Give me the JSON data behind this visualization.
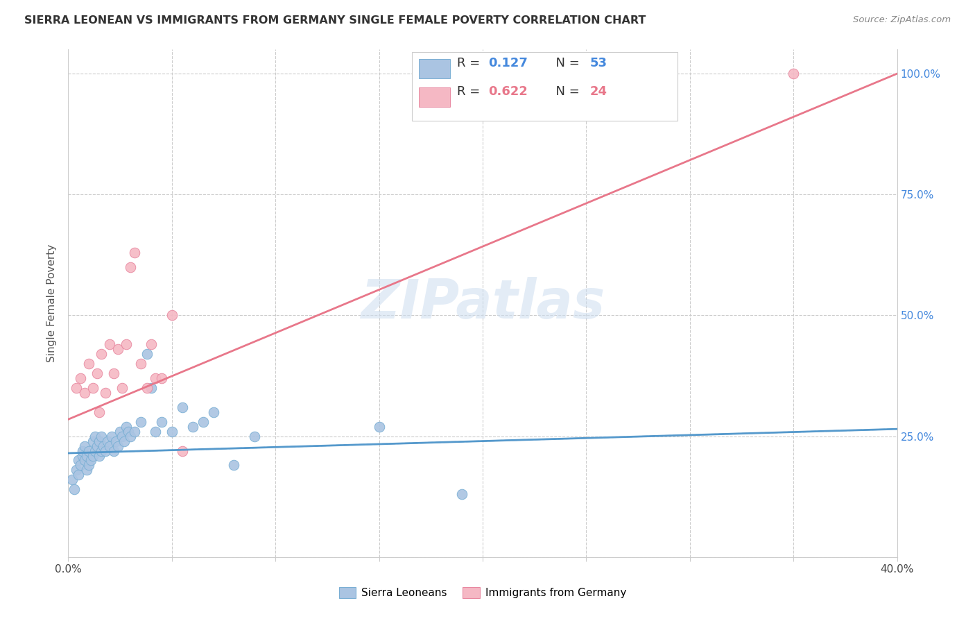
{
  "title": "SIERRA LEONEAN VS IMMIGRANTS FROM GERMANY SINGLE FEMALE POVERTY CORRELATION CHART",
  "source": "Source: ZipAtlas.com",
  "ylabel": "Single Female Poverty",
  "xlim": [
    0.0,
    0.4
  ],
  "ylim": [
    0.0,
    1.05
  ],
  "xtick_positions": [
    0.0,
    0.05,
    0.1,
    0.15,
    0.2,
    0.25,
    0.3,
    0.35,
    0.4
  ],
  "xticklabels": [
    "0.0%",
    "",
    "",
    "",
    "",
    "",
    "",
    "",
    "40.0%"
  ],
  "ytick_positions": [
    0.0,
    0.25,
    0.5,
    0.75,
    1.0
  ],
  "yticklabels": [
    "",
    "25.0%",
    "50.0%",
    "75.0%",
    "100.0%"
  ],
  "grid_color": "#cccccc",
  "background_color": "#ffffff",
  "sl_color": "#aac4e2",
  "sl_edge": "#7aafd4",
  "de_color": "#f5b8c4",
  "de_edge": "#e888a0",
  "sl_line_color": "#5599cc",
  "de_line_color": "#e8778a",
  "sl_R": "0.127",
  "sl_N": "53",
  "de_R": "0.622",
  "de_N": "24",
  "stat_color_R": "#333333",
  "stat_color_N_sl": "#4488dd",
  "stat_color_val_sl": "#4488dd",
  "stat_color_N_de": "#e8778a",
  "stat_color_val_de": "#e8778a",
  "watermark": "ZIPatlas",
  "watermark_color": "#ccddf0",
  "sl_x": [
    0.002,
    0.003,
    0.004,
    0.005,
    0.005,
    0.006,
    0.007,
    0.007,
    0.008,
    0.008,
    0.009,
    0.009,
    0.01,
    0.01,
    0.011,
    0.012,
    0.012,
    0.013,
    0.013,
    0.014,
    0.015,
    0.015,
    0.016,
    0.016,
    0.017,
    0.018,
    0.019,
    0.02,
    0.021,
    0.022,
    0.023,
    0.024,
    0.025,
    0.026,
    0.027,
    0.028,
    0.029,
    0.03,
    0.032,
    0.035,
    0.038,
    0.04,
    0.042,
    0.045,
    0.05,
    0.055,
    0.06,
    0.065,
    0.07,
    0.08,
    0.09,
    0.15,
    0.19
  ],
  "sl_y": [
    0.16,
    0.14,
    0.18,
    0.2,
    0.17,
    0.19,
    0.21,
    0.22,
    0.2,
    0.23,
    0.18,
    0.21,
    0.19,
    0.22,
    0.2,
    0.21,
    0.24,
    0.22,
    0.25,
    0.23,
    0.21,
    0.24,
    0.22,
    0.25,
    0.23,
    0.22,
    0.24,
    0.23,
    0.25,
    0.22,
    0.24,
    0.23,
    0.26,
    0.25,
    0.24,
    0.27,
    0.26,
    0.25,
    0.26,
    0.28,
    0.42,
    0.35,
    0.26,
    0.28,
    0.26,
    0.31,
    0.27,
    0.28,
    0.3,
    0.19,
    0.25,
    0.27,
    0.13
  ],
  "de_x": [
    0.004,
    0.006,
    0.008,
    0.01,
    0.012,
    0.014,
    0.015,
    0.016,
    0.018,
    0.02,
    0.022,
    0.024,
    0.026,
    0.028,
    0.03,
    0.032,
    0.035,
    0.038,
    0.04,
    0.042,
    0.045,
    0.05,
    0.055,
    0.35
  ],
  "de_y": [
    0.35,
    0.37,
    0.34,
    0.4,
    0.35,
    0.38,
    0.3,
    0.42,
    0.34,
    0.44,
    0.38,
    0.43,
    0.35,
    0.44,
    0.6,
    0.63,
    0.4,
    0.35,
    0.44,
    0.37,
    0.37,
    0.5,
    0.22,
    1.0
  ],
  "sl_line_x0": 0.0,
  "sl_line_y0": 0.215,
  "sl_line_x1": 0.4,
  "sl_line_y1": 0.265,
  "de_line_x0": 0.0,
  "de_line_y0": 0.285,
  "de_line_x1": 0.4,
  "de_line_y1": 1.0
}
